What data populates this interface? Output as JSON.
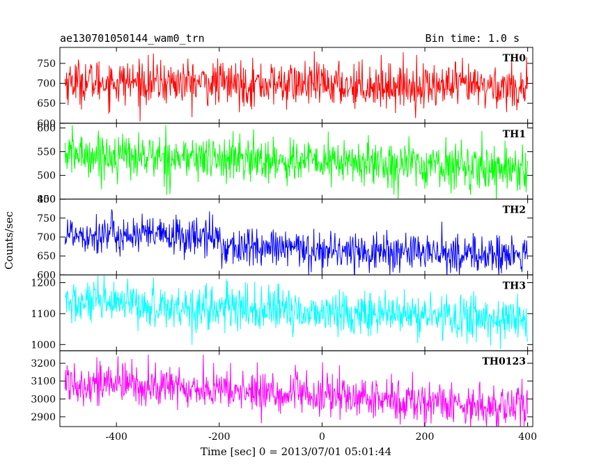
{
  "header": {
    "title": "ae130701050144_wam0_trn",
    "bin_time": "Bin time: 1.0 s"
  },
  "axes": {
    "xlabel": "Time [sec] 0 = 2013/07/01 05:01:44",
    "ylabel": "Counts/sec",
    "x_ticks": [
      "-400",
      "-200",
      "0",
      "200",
      "400"
    ]
  },
  "chart_data": [
    {
      "type": "line",
      "name": "TH0",
      "color": "#ff0000",
      "xlim": [
        -510,
        410
      ],
      "ylim": [
        600,
        790
      ],
      "y_ticks": [
        "750",
        "700",
        "650",
        "600"
      ],
      "mean_start": 705,
      "mean_end": 690,
      "noise_std": 28,
      "step": null
    },
    {
      "type": "line",
      "name": "TH1",
      "color": "#00ff00",
      "xlim": [
        -510,
        410
      ],
      "ylim": [
        450,
        610
      ],
      "y_ticks": [
        "600",
        "550",
        "500",
        "450"
      ],
      "mean_start": 545,
      "mean_end": 515,
      "noise_std": 24,
      "step": null
    },
    {
      "type": "line",
      "name": "TH2",
      "color": "#0000ff",
      "xlim": [
        -510,
        410
      ],
      "ylim": [
        600,
        800
      ],
      "y_ticks": [
        "800",
        "750",
        "700",
        "650",
        "600"
      ],
      "mean_start": 710,
      "mean_end": 675,
      "noise_std": 26,
      "step": {
        "x": -195,
        "delta": -25
      }
    },
    {
      "type": "line",
      "name": "TH3",
      "color": "#00ffff",
      "xlim": [
        -510,
        410
      ],
      "ylim": [
        980,
        1225
      ],
      "y_ticks": [
        "1200",
        "1100",
        "1000"
      ],
      "mean_start": 1135,
      "mean_end": 1080,
      "noise_std": 36,
      "step": null
    },
    {
      "type": "line",
      "name": "TH0123",
      "color": "#ff00ff",
      "xlim": [
        -510,
        410
      ],
      "ylim": [
        2845,
        3270
      ],
      "y_ticks": [
        "3200",
        "3100",
        "3000",
        "2900"
      ],
      "mean_start": 3100,
      "mean_end": 2950,
      "noise_std": 60,
      "step": null
    }
  ]
}
